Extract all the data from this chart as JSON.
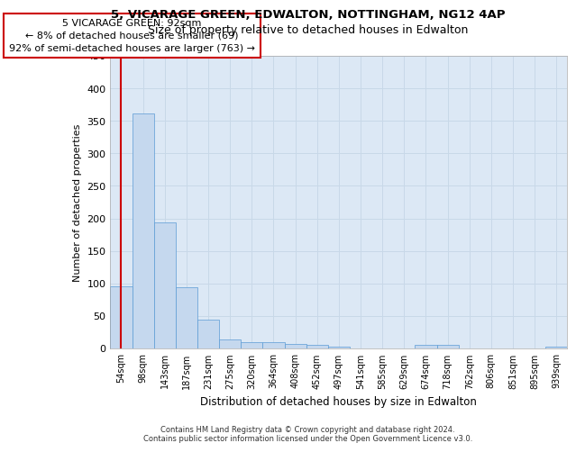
{
  "title1": "5, VICARAGE GREEN, EDWALTON, NOTTINGHAM, NG12 4AP",
  "title2": "Size of property relative to detached houses in Edwalton",
  "xlabel": "Distribution of detached houses by size in Edwalton",
  "ylabel": "Number of detached properties",
  "categories": [
    "54sqm",
    "98sqm",
    "143sqm",
    "187sqm",
    "231sqm",
    "275sqm",
    "320sqm",
    "364sqm",
    "408sqm",
    "452sqm",
    "497sqm",
    "541sqm",
    "585sqm",
    "629sqm",
    "674sqm",
    "718sqm",
    "762sqm",
    "806sqm",
    "851sqm",
    "895sqm",
    "939sqm"
  ],
  "values": [
    96,
    362,
    194,
    94,
    45,
    14,
    10,
    10,
    7,
    6,
    3,
    0,
    0,
    0,
    6,
    5,
    0,
    0,
    0,
    0,
    3
  ],
  "bar_color": "#c5d8ee",
  "bar_edge_color": "#5b9bd5",
  "annotation_line1": "5 VICARAGE GREEN: 92sqm",
  "annotation_line2": "← 8% of detached houses are smaller (69)",
  "annotation_line3": "92% of semi-detached houses are larger (763) →",
  "annotation_box_color": "#ffffff",
  "annotation_box_edge_color": "#cc0000",
  "red_line_color": "#cc0000",
  "grid_color": "#c8d8e8",
  "background_color": "#dce8f5",
  "footer1": "Contains HM Land Registry data © Crown copyright and database right 2024.",
  "footer2": "Contains public sector information licensed under the Open Government Licence v3.0.",
  "ylim": [
    0,
    450
  ],
  "yticks": [
    0,
    50,
    100,
    150,
    200,
    250,
    300,
    350,
    400,
    450
  ]
}
